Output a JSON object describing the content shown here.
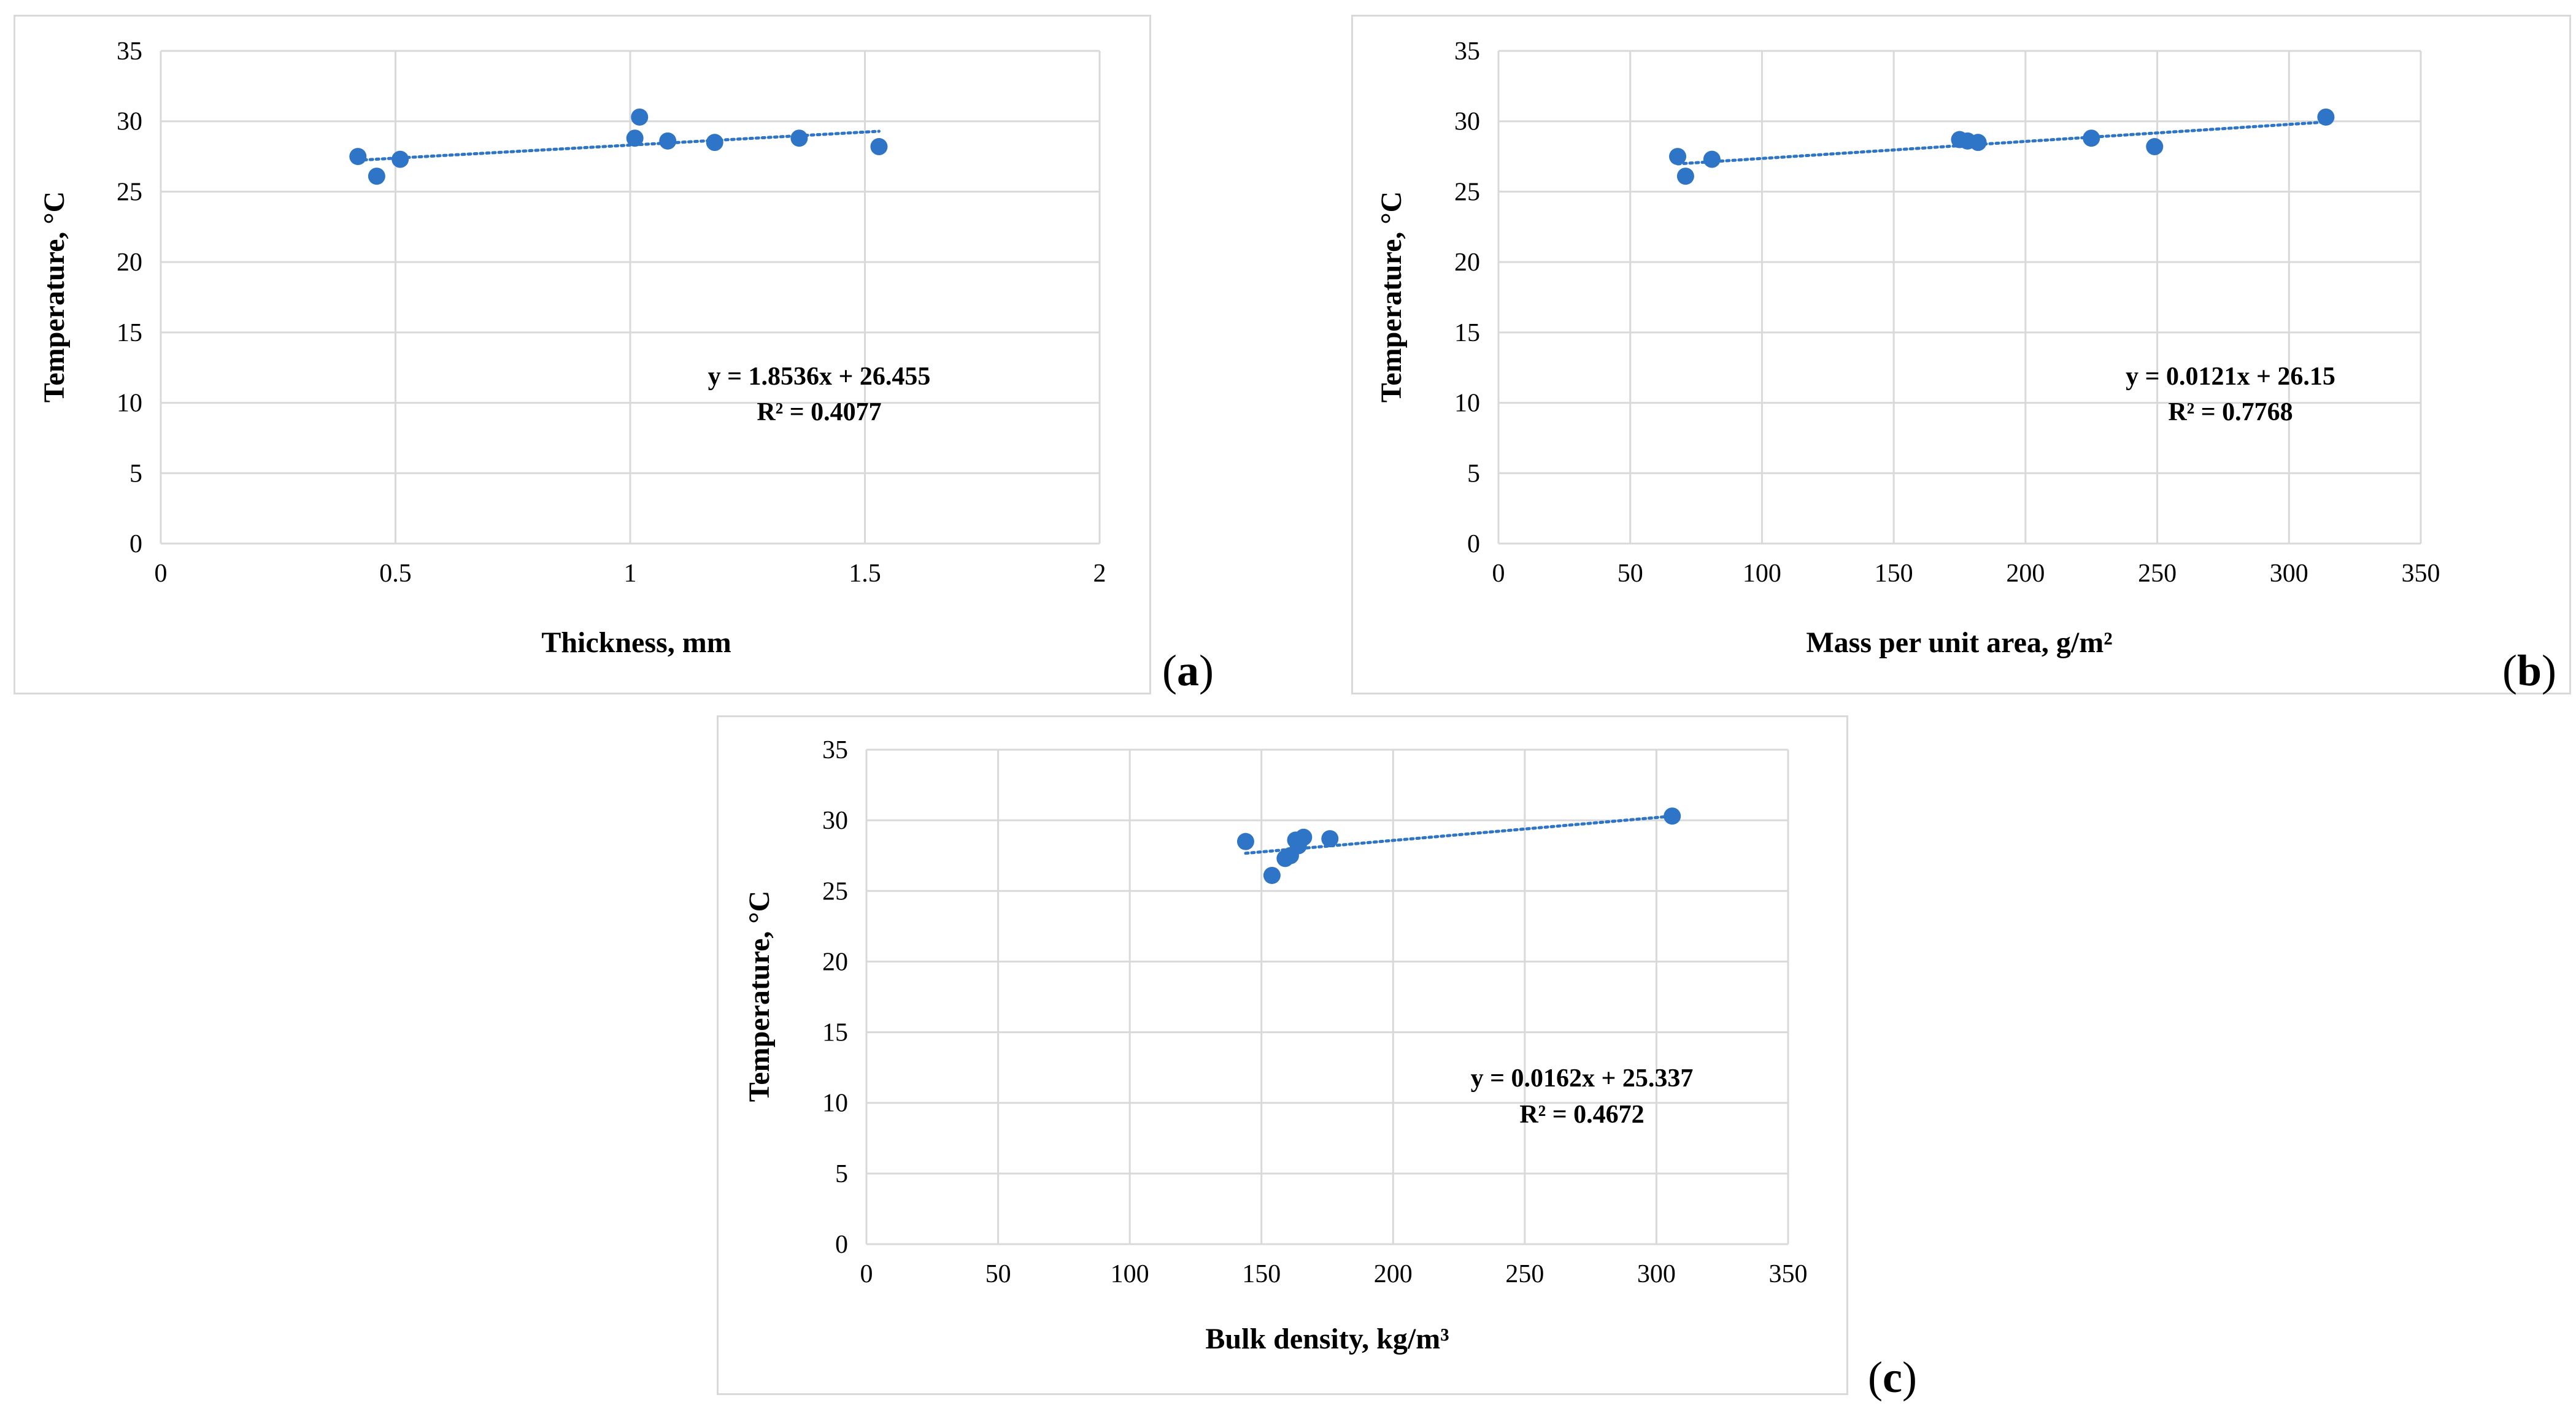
{
  "chart_data": [
    {
      "id": "a",
      "panel_label": "a",
      "type": "scatter",
      "title": "",
      "xlabel": "Thickness, mm",
      "ylabel": "Temperature, °C",
      "xlim": [
        0,
        2
      ],
      "ylim": [
        0,
        35
      ],
      "xticks": [
        0,
        0.5,
        1,
        1.5,
        2
      ],
      "xtick_labels": [
        "0",
        "0.5",
        "1",
        "1.5",
        "2"
      ],
      "yticks": [
        0,
        5,
        10,
        15,
        20,
        25,
        30,
        35
      ],
      "ytick_labels": [
        "0",
        "5",
        "10",
        "15",
        "20",
        "25",
        "30",
        "35"
      ],
      "grid": true,
      "marker_color": "#2e75c8",
      "series": [
        {
          "name": "Temperature",
          "x": [
            0.42,
            0.46,
            0.51,
            1.01,
            1.02,
            1.08,
            1.18,
            1.36,
            1.53
          ],
          "y": [
            27.5,
            26.1,
            27.3,
            28.8,
            30.3,
            28.6,
            28.5,
            28.8,
            28.2
          ]
        }
      ],
      "trendline": {
        "slope": 1.8536,
        "intercept": 26.455,
        "x_range": [
          0.42,
          1.53
        ]
      },
      "equation": "y = 1.8536x + 26.455",
      "r2": "R² = 0.4077"
    },
    {
      "id": "b",
      "panel_label": "b",
      "type": "scatter",
      "title": "",
      "xlabel": "Mass per unit area, g/m²",
      "ylabel": "Temperature, °C",
      "xlim": [
        0,
        350
      ],
      "ylim": [
        0,
        35
      ],
      "xticks": [
        0,
        50,
        100,
        150,
        200,
        250,
        300,
        350
      ],
      "xtick_labels": [
        "0",
        "50",
        "100",
        "150",
        "200",
        "250",
        "300",
        "350"
      ],
      "yticks": [
        0,
        5,
        10,
        15,
        20,
        25,
        30,
        35
      ],
      "ytick_labels": [
        "0",
        "5",
        "10",
        "15",
        "20",
        "25",
        "30",
        "35"
      ],
      "grid": true,
      "marker_color": "#2e75c8",
      "series": [
        {
          "name": "Temperature",
          "x": [
            68,
            71,
            81,
            175,
            178,
            182,
            225,
            249,
            314
          ],
          "y": [
            27.5,
            26.1,
            27.3,
            28.7,
            28.6,
            28.5,
            28.8,
            28.2,
            30.3
          ]
        }
      ],
      "trendline": {
        "slope": 0.0121,
        "intercept": 26.15,
        "x_range": [
          68,
          314
        ]
      },
      "equation": "y = 0.0121x + 26.15",
      "r2": "R² = 0.7768"
    },
    {
      "id": "c",
      "panel_label": "c",
      "type": "scatter",
      "title": "",
      "xlabel": "Bulk density, kg/m³",
      "ylabel": "Temperature, °C",
      "xlim": [
        0,
        350
      ],
      "ylim": [
        0,
        35
      ],
      "xticks": [
        0,
        50,
        100,
        150,
        200,
        250,
        300,
        350
      ],
      "xtick_labels": [
        "0",
        "50",
        "100",
        "150",
        "200",
        "250",
        "300",
        "350"
      ],
      "yticks": [
        0,
        5,
        10,
        15,
        20,
        25,
        30,
        35
      ],
      "ytick_labels": [
        "0",
        "5",
        "10",
        "15",
        "20",
        "25",
        "30",
        "35"
      ],
      "grid": true,
      "marker_color": "#2e75c8",
      "series": [
        {
          "name": "Temperature",
          "x": [
            144,
            154,
            159,
            161,
            163,
            164,
            166,
            176,
            306
          ],
          "y": [
            28.5,
            26.1,
            27.3,
            27.5,
            28.6,
            28.2,
            28.8,
            28.7,
            30.3
          ]
        }
      ],
      "trendline": {
        "slope": 0.0162,
        "intercept": 25.337,
        "x_range": [
          144,
          306
        ]
      },
      "equation": "y = 0.0162x + 25.337",
      "r2": "R² = 0.4672"
    }
  ]
}
